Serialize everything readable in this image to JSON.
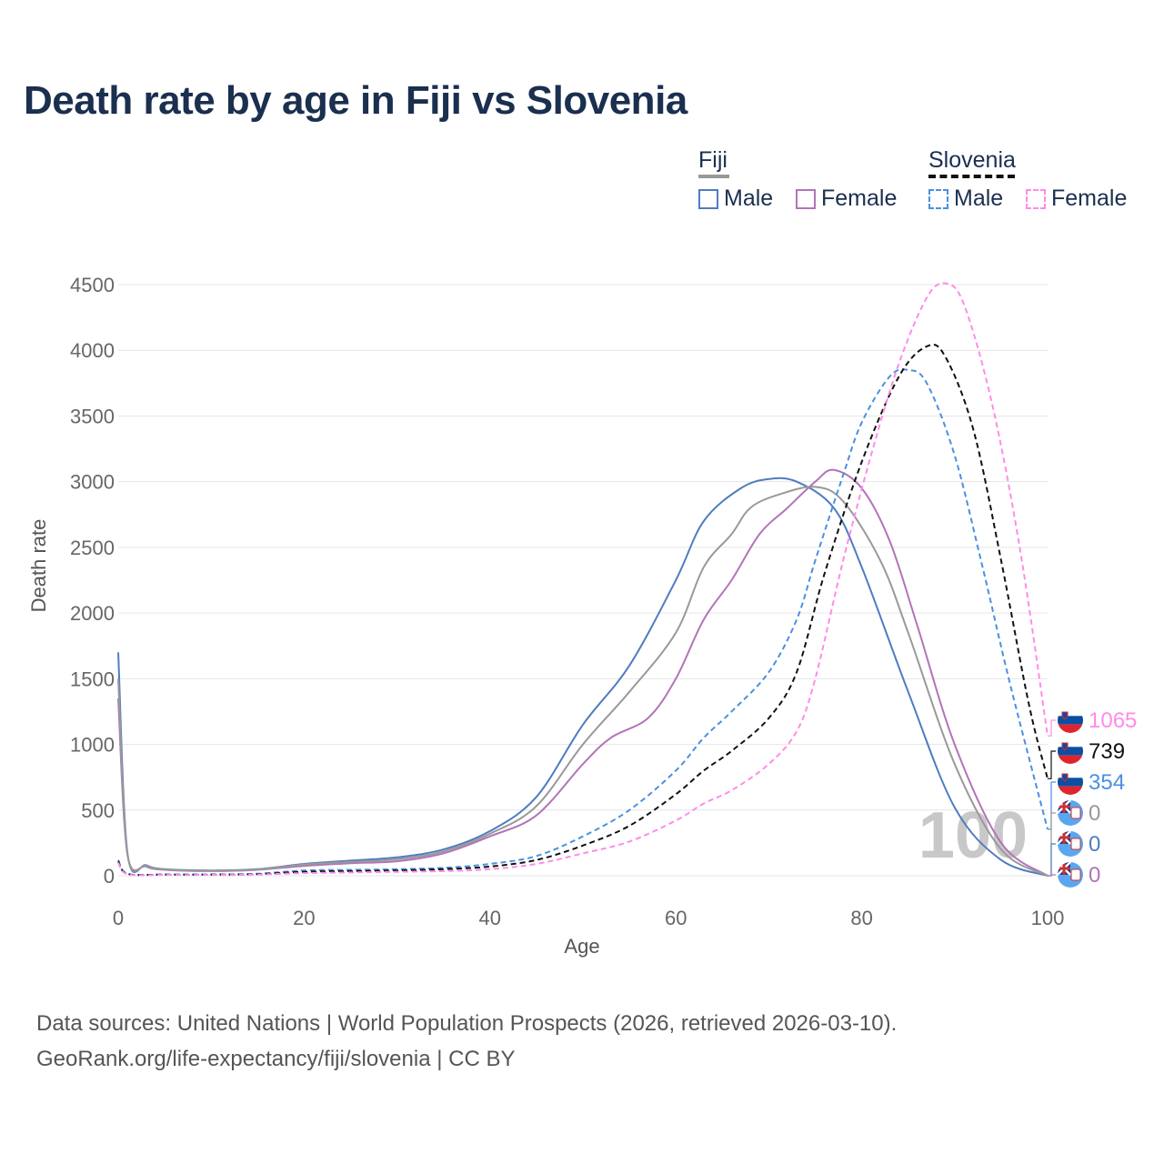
{
  "title": "Death rate by age in Fiji vs Slovenia",
  "legend": {
    "groups": [
      {
        "name": "Fiji",
        "style": "solid",
        "items": [
          {
            "label": "Male",
            "color": "#4f7cc0"
          },
          {
            "label": "Female",
            "color": "#b274b8"
          }
        ]
      },
      {
        "name": "Slovenia",
        "style": "dashed",
        "items": [
          {
            "label": "Male",
            "color": "#4a90e2"
          },
          {
            "label": "Female",
            "color": "#ff8be8"
          }
        ]
      }
    ]
  },
  "footer": {
    "line1": "Data sources: United Nations | World Population Prospects (2026, retrieved 2026-03-10).",
    "line2": "GeoRank.org/life-expectancy/fiji/slovenia | CC BY"
  },
  "chart_data": {
    "type": "line",
    "xlabel": "Age",
    "ylabel": "Death rate",
    "xlim": [
      0,
      100
    ],
    "ylim": [
      0,
      4500
    ],
    "xticks": [
      0,
      20,
      40,
      60,
      80,
      100
    ],
    "yticks": [
      0,
      500,
      1000,
      1500,
      2000,
      2500,
      3000,
      3500,
      4000,
      4500
    ],
    "watermark": "100",
    "series": [
      {
        "name": "Fiji Male",
        "country": "Fiji",
        "sex": "Male",
        "color": "#4f7cc0",
        "dash": false,
        "end_label": "0",
        "points": [
          [
            0,
            1700
          ],
          [
            1,
            170
          ],
          [
            3,
            80
          ],
          [
            5,
            50
          ],
          [
            10,
            40
          ],
          [
            15,
            50
          ],
          [
            20,
            90
          ],
          [
            25,
            115
          ],
          [
            30,
            140
          ],
          [
            35,
            200
          ],
          [
            40,
            340
          ],
          [
            45,
            600
          ],
          [
            50,
            1150
          ],
          [
            55,
            1600
          ],
          [
            60,
            2250
          ],
          [
            63,
            2700
          ],
          [
            67,
            2950
          ],
          [
            70,
            3020
          ],
          [
            73,
            3000
          ],
          [
            77,
            2800
          ],
          [
            80,
            2350
          ],
          [
            85,
            1400
          ],
          [
            90,
            520
          ],
          [
            95,
            120
          ],
          [
            100,
            0
          ]
        ]
      },
      {
        "name": "Fiji Female",
        "country": "Fiji",
        "sex": "Female",
        "color": "#b274b8",
        "dash": false,
        "end_label": "0",
        "points": [
          [
            0,
            1350
          ],
          [
            1,
            160
          ],
          [
            3,
            70
          ],
          [
            5,
            45
          ],
          [
            10,
            35
          ],
          [
            15,
            45
          ],
          [
            20,
            75
          ],
          [
            25,
            95
          ],
          [
            30,
            110
          ],
          [
            35,
            170
          ],
          [
            40,
            300
          ],
          [
            45,
            460
          ],
          [
            50,
            850
          ],
          [
            53,
            1050
          ],
          [
            57,
            1200
          ],
          [
            60,
            1500
          ],
          [
            63,
            1950
          ],
          [
            66,
            2250
          ],
          [
            69,
            2600
          ],
          [
            72,
            2800
          ],
          [
            75,
            3000
          ],
          [
            77,
            3090
          ],
          [
            80,
            2950
          ],
          [
            83,
            2550
          ],
          [
            86,
            1900
          ],
          [
            90,
            1000
          ],
          [
            95,
            250
          ],
          [
            100,
            0
          ]
        ]
      },
      {
        "name": "Fiji Total",
        "country": "Fiji",
        "sex": "Total",
        "color": "#999999",
        "dash": false,
        "end_label": "0",
        "points": [
          [
            0,
            1500
          ],
          [
            1,
            165
          ],
          [
            3,
            75
          ],
          [
            5,
            48
          ],
          [
            10,
            38
          ],
          [
            15,
            48
          ],
          [
            20,
            85
          ],
          [
            25,
            105
          ],
          [
            30,
            125
          ],
          [
            35,
            185
          ],
          [
            40,
            320
          ],
          [
            45,
            530
          ],
          [
            50,
            1000
          ],
          [
            55,
            1400
          ],
          [
            60,
            1850
          ],
          [
            63,
            2350
          ],
          [
            66,
            2600
          ],
          [
            68,
            2800
          ],
          [
            71,
            2900
          ],
          [
            75,
            2960
          ],
          [
            78,
            2850
          ],
          [
            82,
            2400
          ],
          [
            85,
            1850
          ],
          [
            90,
            850
          ],
          [
            95,
            200
          ],
          [
            100,
            0
          ]
        ]
      },
      {
        "name": "Slovenia Male",
        "country": "Slovenia",
        "sex": "Male",
        "color": "#4a90e2",
        "dash": true,
        "end_label": "354",
        "points": [
          [
            0,
            120
          ],
          [
            1,
            15
          ],
          [
            5,
            10
          ],
          [
            10,
            10
          ],
          [
            15,
            15
          ],
          [
            20,
            40
          ],
          [
            25,
            45
          ],
          [
            30,
            50
          ],
          [
            35,
            60
          ],
          [
            40,
            90
          ],
          [
            45,
            150
          ],
          [
            50,
            300
          ],
          [
            55,
            500
          ],
          [
            60,
            800
          ],
          [
            63,
            1050
          ],
          [
            66,
            1250
          ],
          [
            70,
            1550
          ],
          [
            73,
            1950
          ],
          [
            75,
            2400
          ],
          [
            78,
            3050
          ],
          [
            80,
            3450
          ],
          [
            83,
            3800
          ],
          [
            85,
            3850
          ],
          [
            87,
            3750
          ],
          [
            90,
            3200
          ],
          [
            93,
            2350
          ],
          [
            96,
            1450
          ],
          [
            100,
            354
          ]
        ]
      },
      {
        "name": "Slovenia Total",
        "country": "Slovenia",
        "sex": "Total",
        "color": "#111111",
        "dash": true,
        "end_label": "739",
        "points": [
          [
            0,
            110
          ],
          [
            1,
            14
          ],
          [
            5,
            8
          ],
          [
            10,
            8
          ],
          [
            15,
            12
          ],
          [
            20,
            30
          ],
          [
            25,
            35
          ],
          [
            30,
            40
          ],
          [
            35,
            50
          ],
          [
            40,
            70
          ],
          [
            45,
            120
          ],
          [
            50,
            230
          ],
          [
            55,
            380
          ],
          [
            60,
            620
          ],
          [
            63,
            800
          ],
          [
            66,
            950
          ],
          [
            70,
            1200
          ],
          [
            73,
            1550
          ],
          [
            76,
            2300
          ],
          [
            80,
            3150
          ],
          [
            84,
            3800
          ],
          [
            87,
            4030
          ],
          [
            89,
            3950
          ],
          [
            92,
            3400
          ],
          [
            95,
            2400
          ],
          [
            98,
            1300
          ],
          [
            100,
            739
          ]
        ]
      },
      {
        "name": "Slovenia Female",
        "country": "Slovenia",
        "sex": "Female",
        "color": "#ff8be8",
        "dash": true,
        "end_label": "1065",
        "points": [
          [
            0,
            100
          ],
          [
            1,
            12
          ],
          [
            5,
            7
          ],
          [
            10,
            7
          ],
          [
            15,
            10
          ],
          [
            20,
            20
          ],
          [
            25,
            25
          ],
          [
            30,
            30
          ],
          [
            35,
            35
          ],
          [
            40,
            50
          ],
          [
            45,
            90
          ],
          [
            50,
            170
          ],
          [
            55,
            260
          ],
          [
            60,
            420
          ],
          [
            63,
            550
          ],
          [
            66,
            650
          ],
          [
            70,
            850
          ],
          [
            73,
            1100
          ],
          [
            75,
            1500
          ],
          [
            78,
            2400
          ],
          [
            81,
            3200
          ],
          [
            84,
            3900
          ],
          [
            87,
            4400
          ],
          [
            89,
            4510
          ],
          [
            91,
            4350
          ],
          [
            94,
            3600
          ],
          [
            97,
            2500
          ],
          [
            100,
            1065
          ]
        ]
      }
    ],
    "end_labels_order": [
      "Slovenia Female",
      "Slovenia Total",
      "Slovenia Male",
      "Fiji Total",
      "Fiji Male",
      "Fiji Female"
    ]
  }
}
